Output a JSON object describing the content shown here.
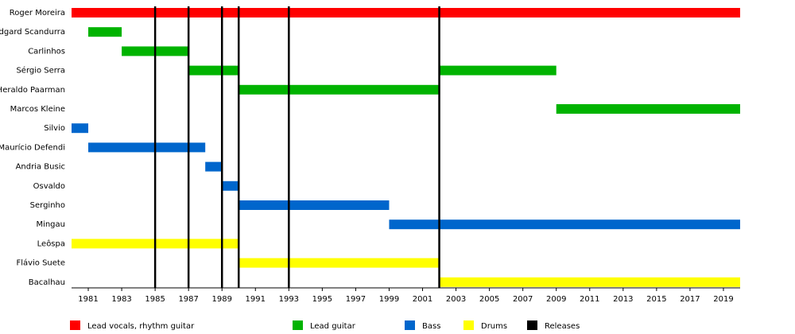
{
  "chart_data": {
    "type": "timeline",
    "categories": [
      "Roger Moreira",
      "Edgard Scandurra",
      "Carlinhos",
      "Sérgio Serra",
      "Heraldo Paarman",
      "Marcos Kleine",
      "Silvio",
      "Maurício Defendi",
      "Andria Busic",
      "Osvaldo",
      "Serginho",
      "Mingau",
      "Leôspa",
      "Flávio Suete",
      "Bacalhau"
    ],
    "series": [
      {
        "name": "Lead vocals, rhythm guitar",
        "color": "#ff0000",
        "periods": [
          {
            "category": "Roger Moreira",
            "start": 1980,
            "end": 2020
          }
        ]
      },
      {
        "name": "Lead guitar",
        "color": "#00b300",
        "periods": [
          {
            "category": "Edgard Scandurra",
            "start": 1981,
            "end": 1983
          },
          {
            "category": "Carlinhos",
            "start": 1983,
            "end": 1987
          },
          {
            "category": "Sérgio Serra",
            "start": 1987,
            "end": 1990
          },
          {
            "category": "Heraldo Paarman",
            "start": 1990,
            "end": 2002
          },
          {
            "category": "Sérgio Serra",
            "start": 2002,
            "end": 2009
          },
          {
            "category": "Marcos Kleine",
            "start": 2009,
            "end": 2020
          }
        ]
      },
      {
        "name": "Bass",
        "color": "#0066cc",
        "periods": [
          {
            "category": "Silvio",
            "start": 1980,
            "end": 1981
          },
          {
            "category": "Maurício Defendi",
            "start": 1981,
            "end": 1988
          },
          {
            "category": "Andria Busic",
            "start": 1988,
            "end": 1989
          },
          {
            "category": "Osvaldo",
            "start": 1989,
            "end": 1990
          },
          {
            "category": "Serginho",
            "start": 1990,
            "end": 1999
          },
          {
            "category": "Mingau",
            "start": 1999,
            "end": 2020
          }
        ]
      },
      {
        "name": "Drums",
        "color": "#ffff00",
        "periods": [
          {
            "category": "Leôspa",
            "start": 1980,
            "end": 1990
          },
          {
            "category": "Flávio Suete",
            "start": 1990,
            "end": 2002
          },
          {
            "category": "Bacalhau",
            "start": 2002,
            "end": 2020
          }
        ]
      }
    ],
    "releases": {
      "name": "Releases",
      "color": "#000000",
      "x": [
        1985,
        1987,
        1989,
        1990,
        1993,
        2002
      ]
    },
    "xlim": [
      1980,
      2020
    ],
    "xticks": [
      1981,
      1983,
      1985,
      1987,
      1989,
      1991,
      1993,
      1995,
      1997,
      1999,
      2001,
      2003,
      2005,
      2007,
      2009,
      2011,
      2013,
      2015,
      2017,
      2019
    ]
  }
}
